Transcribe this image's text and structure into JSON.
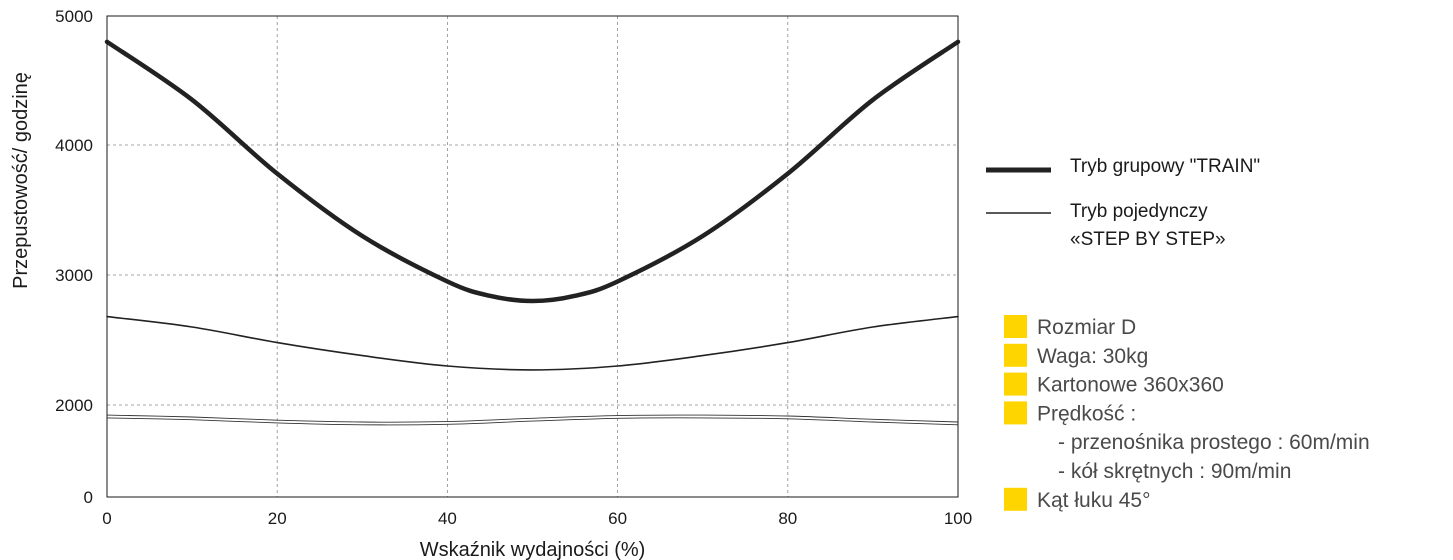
{
  "chart_data": {
    "type": "line",
    "title": "",
    "xlabel": "Wskaźnik wydajności (%)",
    "ylabel": "Przepustowość/ godzinę",
    "xlim": [
      0,
      100
    ],
    "ylim": [
      0,
      5000
    ],
    "xticks": [
      "0",
      "20",
      "40",
      "60",
      "80",
      "100"
    ],
    "yticks": [
      "0",
      "2000",
      "3000",
      "4000",
      "5000"
    ],
    "grid": true,
    "series": [
      {
        "name": "Tryb  grupowy \"TRAIN\"",
        "style": "thick",
        "x": [
          0,
          10,
          20,
          30,
          40,
          45,
          50,
          55,
          60,
          70,
          80,
          90,
          100
        ],
        "y": [
          4800,
          4350,
          3780,
          3300,
          2950,
          2840,
          2800,
          2840,
          2950,
          3300,
          3780,
          4350,
          4800
        ]
      },
      {
        "name": "Tryb pojedynczy «STEP BY STEP»",
        "style": "thin",
        "x": [
          0,
          10,
          20,
          30,
          40,
          50,
          60,
          70,
          80,
          90,
          100
        ],
        "y": [
          2680,
          2600,
          2480,
          2380,
          2300,
          2270,
          2300,
          2380,
          2480,
          2600,
          2680
        ]
      },
      {
        "name": "",
        "style": "hairline",
        "x": [
          0,
          10,
          20,
          30,
          40,
          50,
          60,
          70,
          80,
          90,
          100
        ],
        "y": [
          1780,
          1740,
          1670,
          1630,
          1640,
          1710,
          1770,
          1780,
          1760,
          1690,
          1630
        ]
      },
      {
        "name": "",
        "style": "hairline",
        "x": [
          0,
          10,
          20,
          30,
          40,
          50,
          60,
          70,
          80,
          90,
          100
        ],
        "y": [
          1720,
          1680,
          1610,
          1570,
          1580,
          1650,
          1710,
          1720,
          1700,
          1630,
          1570
        ]
      }
    ],
    "legend_position": "right"
  },
  "legend": {
    "train_label": "Tryb  grupowy \"TRAIN\"",
    "step_label_line1": "Tryb pojedynczy",
    "step_label_line2": "«STEP BY STEP»"
  },
  "info": {
    "bullet_color": "#ffd500",
    "items": [
      {
        "text": "Rozmiar D",
        "bullet": true
      },
      {
        "text": "Waga: 30kg",
        "bullet": true
      },
      {
        "text": "Kartonowe 360x360",
        "bullet": true
      },
      {
        "text": "Prędkość  :",
        "bullet": true
      },
      {
        "text": "- przenośnika prostego : 60m/min",
        "bullet": false
      },
      {
        "text": "- kół skrętnych : 90m/min",
        "bullet": false
      },
      {
        "text": "Kąt łuku 45°",
        "bullet": true
      }
    ]
  }
}
